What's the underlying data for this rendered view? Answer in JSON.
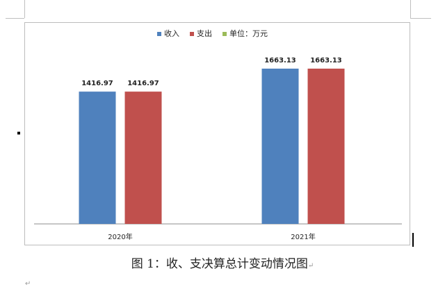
{
  "chart_data": {
    "type": "bar",
    "categories": [
      "2020年",
      "2021年"
    ],
    "series": [
      {
        "name": "收入",
        "color": "#4f81bd",
        "values": [
          1416.97,
          1663.13
        ]
      },
      {
        "name": "支出",
        "color": "#c0504d",
        "values": [
          1416.97,
          1663.13
        ]
      },
      {
        "name": "单位：万元",
        "color": "#9bbb59",
        "values": [
          null,
          null
        ]
      }
    ],
    "data_labels": [
      [
        "1416.97",
        "1663.13"
      ],
      [
        "1416.97",
        "1663.13"
      ]
    ],
    "ylim": [
      0,
      1800
    ],
    "grid": false,
    "legend": "top"
  },
  "caption": {
    "text": "图 1：收、支决算总计变动情况图",
    "paragraph_mark": "↵"
  },
  "doc": {
    "paragraph_mark": "↵"
  }
}
